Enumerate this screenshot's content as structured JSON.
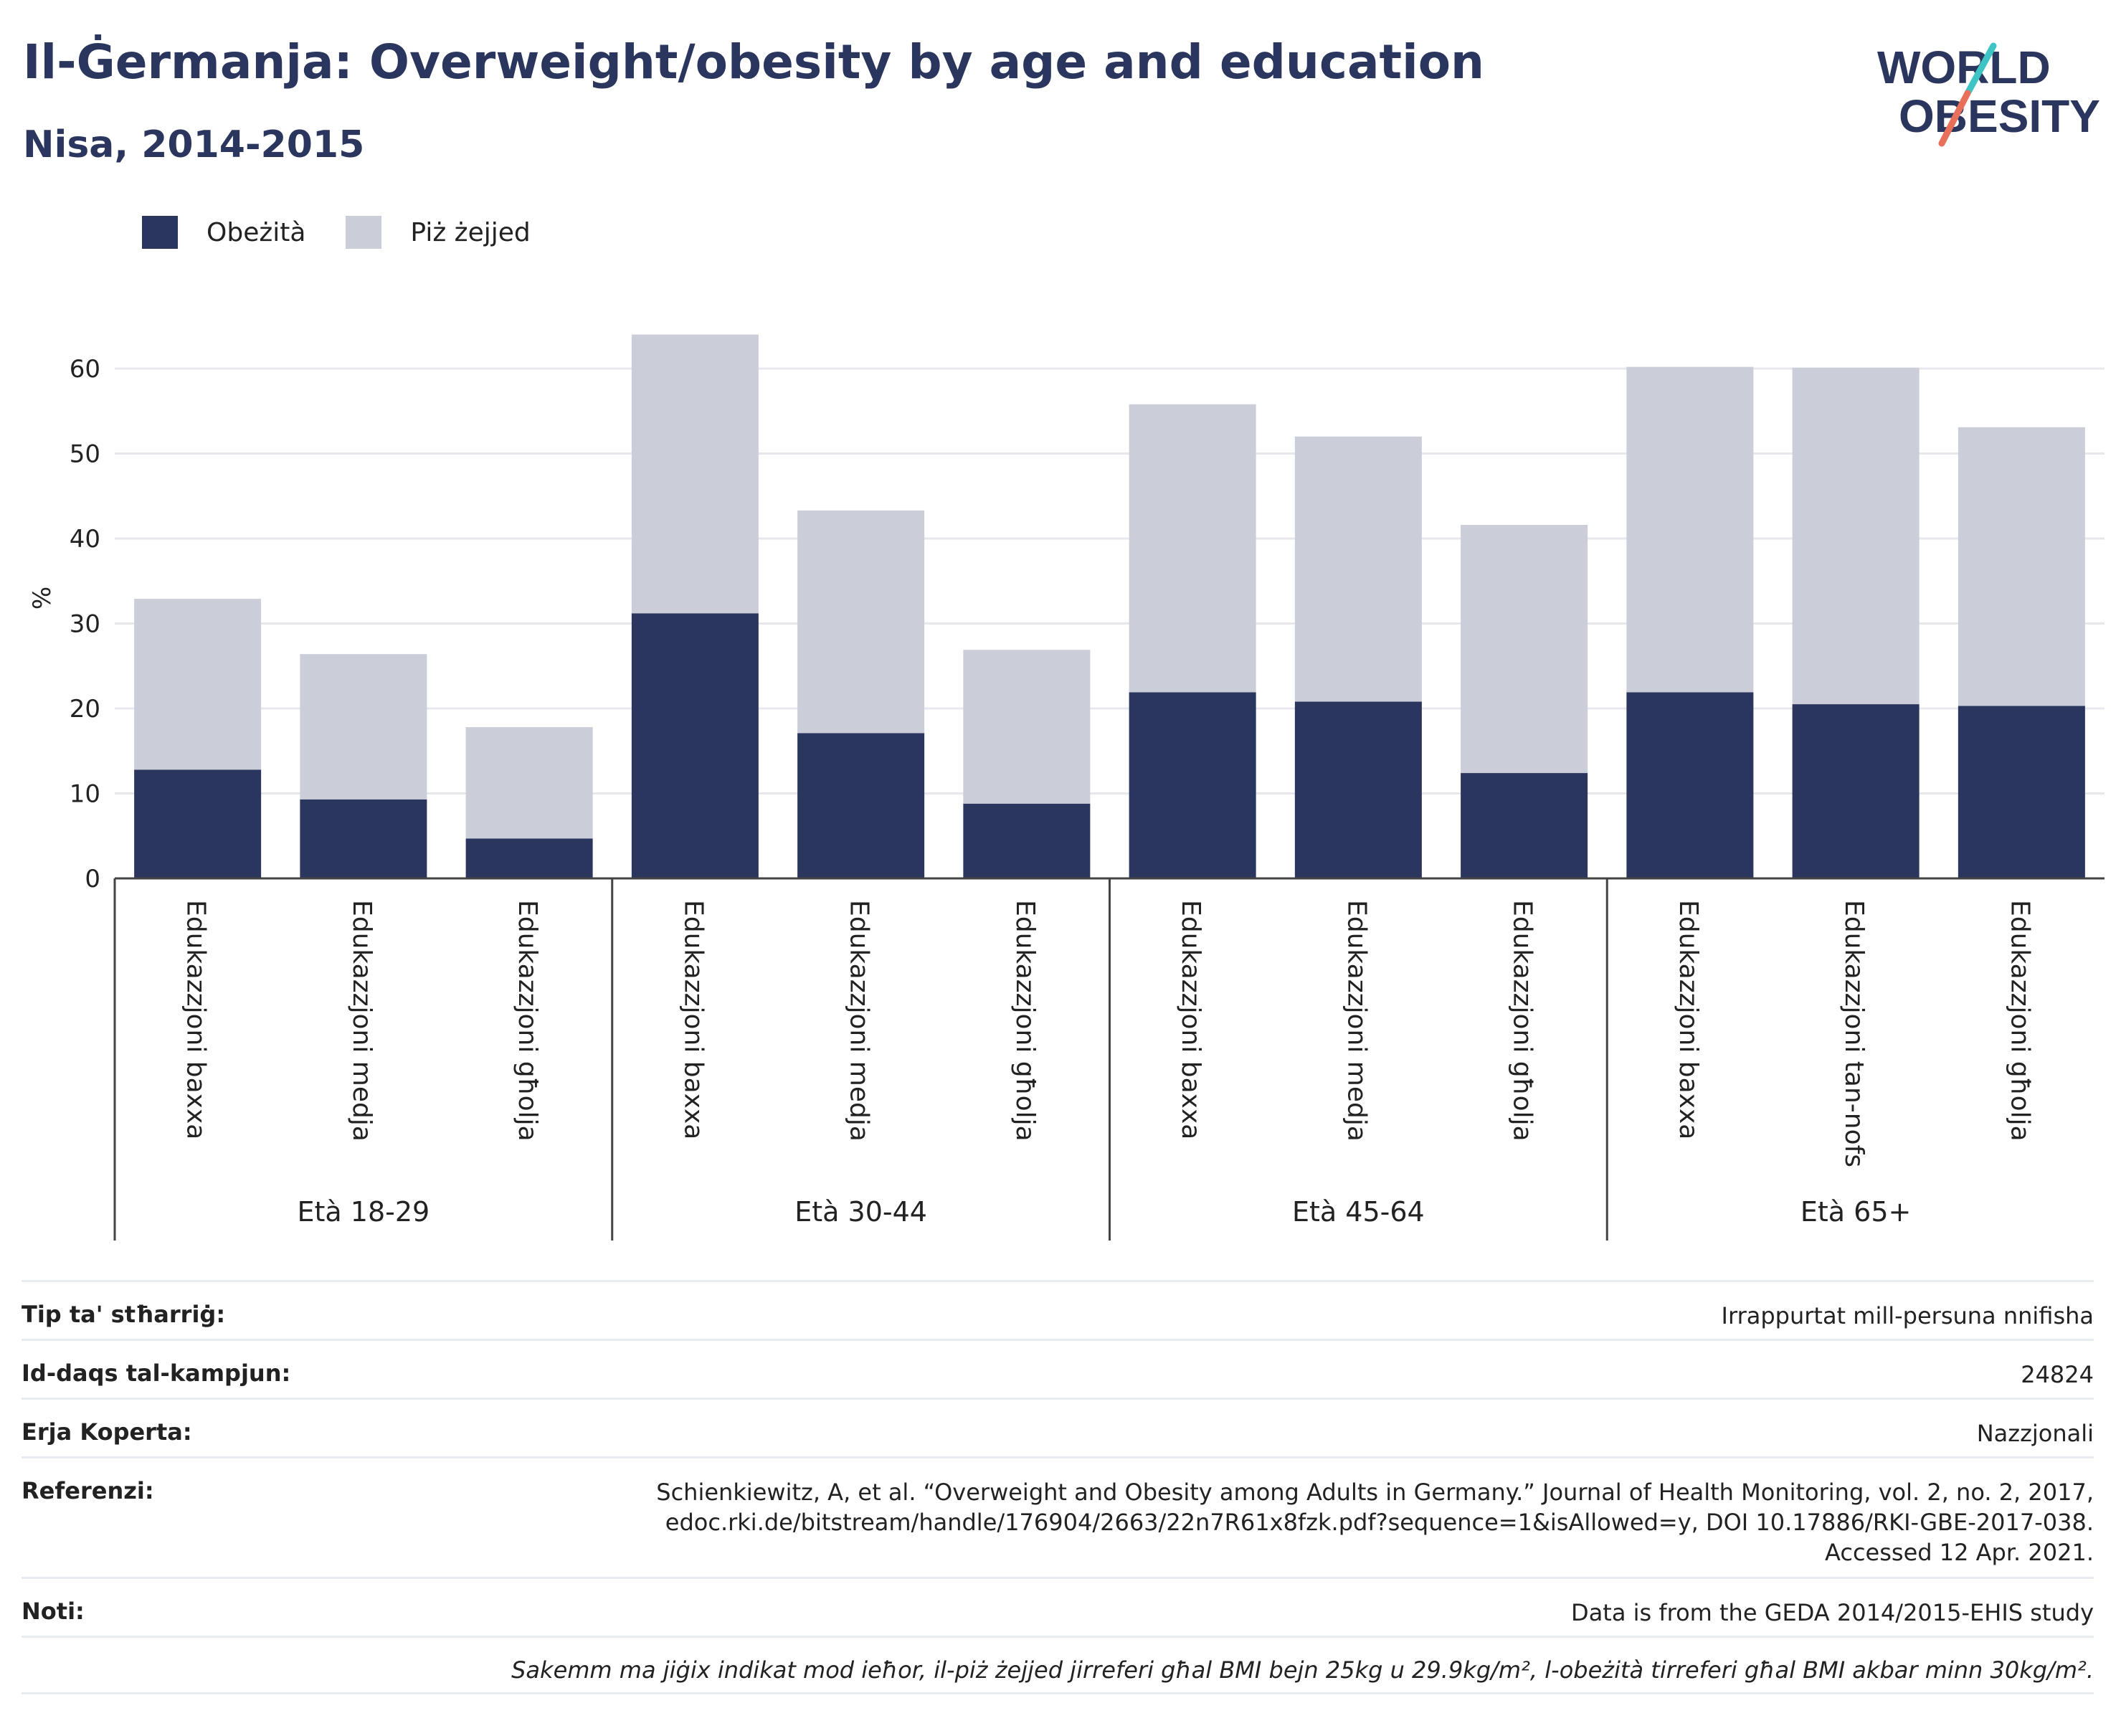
{
  "header": {
    "title": "Il-Ġermanja: Overweight/obesity by age and education",
    "subtitle": "Nisa, 2014-2015"
  },
  "logo": {
    "line1": "WORLD",
    "line2": "OBESITY",
    "accent_teal": "#3ec4c4",
    "accent_red": "#e8705a"
  },
  "legend": [
    {
      "label": "Obeżità",
      "color": "#2b365f"
    },
    {
      "label": "Piż żejjed",
      "color": "#cbcdd9"
    }
  ],
  "chart_data": {
    "type": "bar",
    "stacked": true,
    "ylabel": "%",
    "ylim": [
      0,
      67
    ],
    "yticks": [
      0,
      10,
      20,
      30,
      40,
      50,
      60
    ],
    "grid": true,
    "legend_position": "top-left",
    "categories": [
      "Edukazzjoni baxxa",
      "Edukazzjoni medja",
      "Edukazzjoni għolja",
      "Edukazzjoni baxxa",
      "Edukazzjoni medja",
      "Edukazzjoni għolja",
      "Edukazzjoni baxxa",
      "Edukazzjoni medja",
      "Edukazzjoni għolja",
      "Edukazzjoni baxxa",
      "Edukazzjoni tan-nofs",
      "Edukazzjoni għolja"
    ],
    "groups": [
      {
        "label": "Età 18-29",
        "size": 3
      },
      {
        "label": "Età 30-44",
        "size": 3
      },
      {
        "label": "Età 45-64",
        "size": 3
      },
      {
        "label": "Età 65+",
        "size": 3
      }
    ],
    "series": [
      {
        "name": "Obeżità",
        "color": "#2b365f",
        "values": [
          12.8,
          9.3,
          4.7,
          31.2,
          17.1,
          8.8,
          21.9,
          20.8,
          12.4,
          21.9,
          20.5,
          20.3
        ]
      },
      {
        "name": "Piż żejjed",
        "color": "#cbcdd9",
        "values": [
          20.1,
          17.1,
          13.1,
          32.8,
          26.2,
          18.1,
          33.9,
          31.2,
          29.2,
          38.3,
          39.6,
          32.8
        ]
      }
    ]
  },
  "info": {
    "rows": [
      {
        "key": "Tip ta' stħarriġ:",
        "value": [
          "Irrappurtat mill-persuna nnifisha"
        ]
      },
      {
        "key": "Id-daqs tal-kampjun:",
        "value": [
          "24824"
        ]
      },
      {
        "key": "Erja Koperta:",
        "value": [
          "Nazzjonali"
        ]
      },
      {
        "key": "Referenzi:",
        "value": [
          "Schienkiewitz, A, et al. “Overweight and Obesity among Adults in Germany.” Journal of Health Monitoring, vol. 2, no. 2, 2017,",
          "edoc.rki.de/bitstream/handle/176904/2663/22n7R61x8fzk.pdf?sequence=1&isAllowed=y, DOI 10.17886/RKI-GBE-2017-038.",
          "Accessed 12 Apr. 2021."
        ]
      },
      {
        "key": "Noti:",
        "value": [
          "Data is from the GEDA 2014/2015-EHIS study"
        ]
      }
    ],
    "footnote": "Sakemm ma jiġix indikat mod ieħor, il-piż żejjed jirreferi għal BMI bejn 25kg u 29.9kg/m², l-obeżità tirreferi għal BMI akbar minn 30kg/m²."
  }
}
